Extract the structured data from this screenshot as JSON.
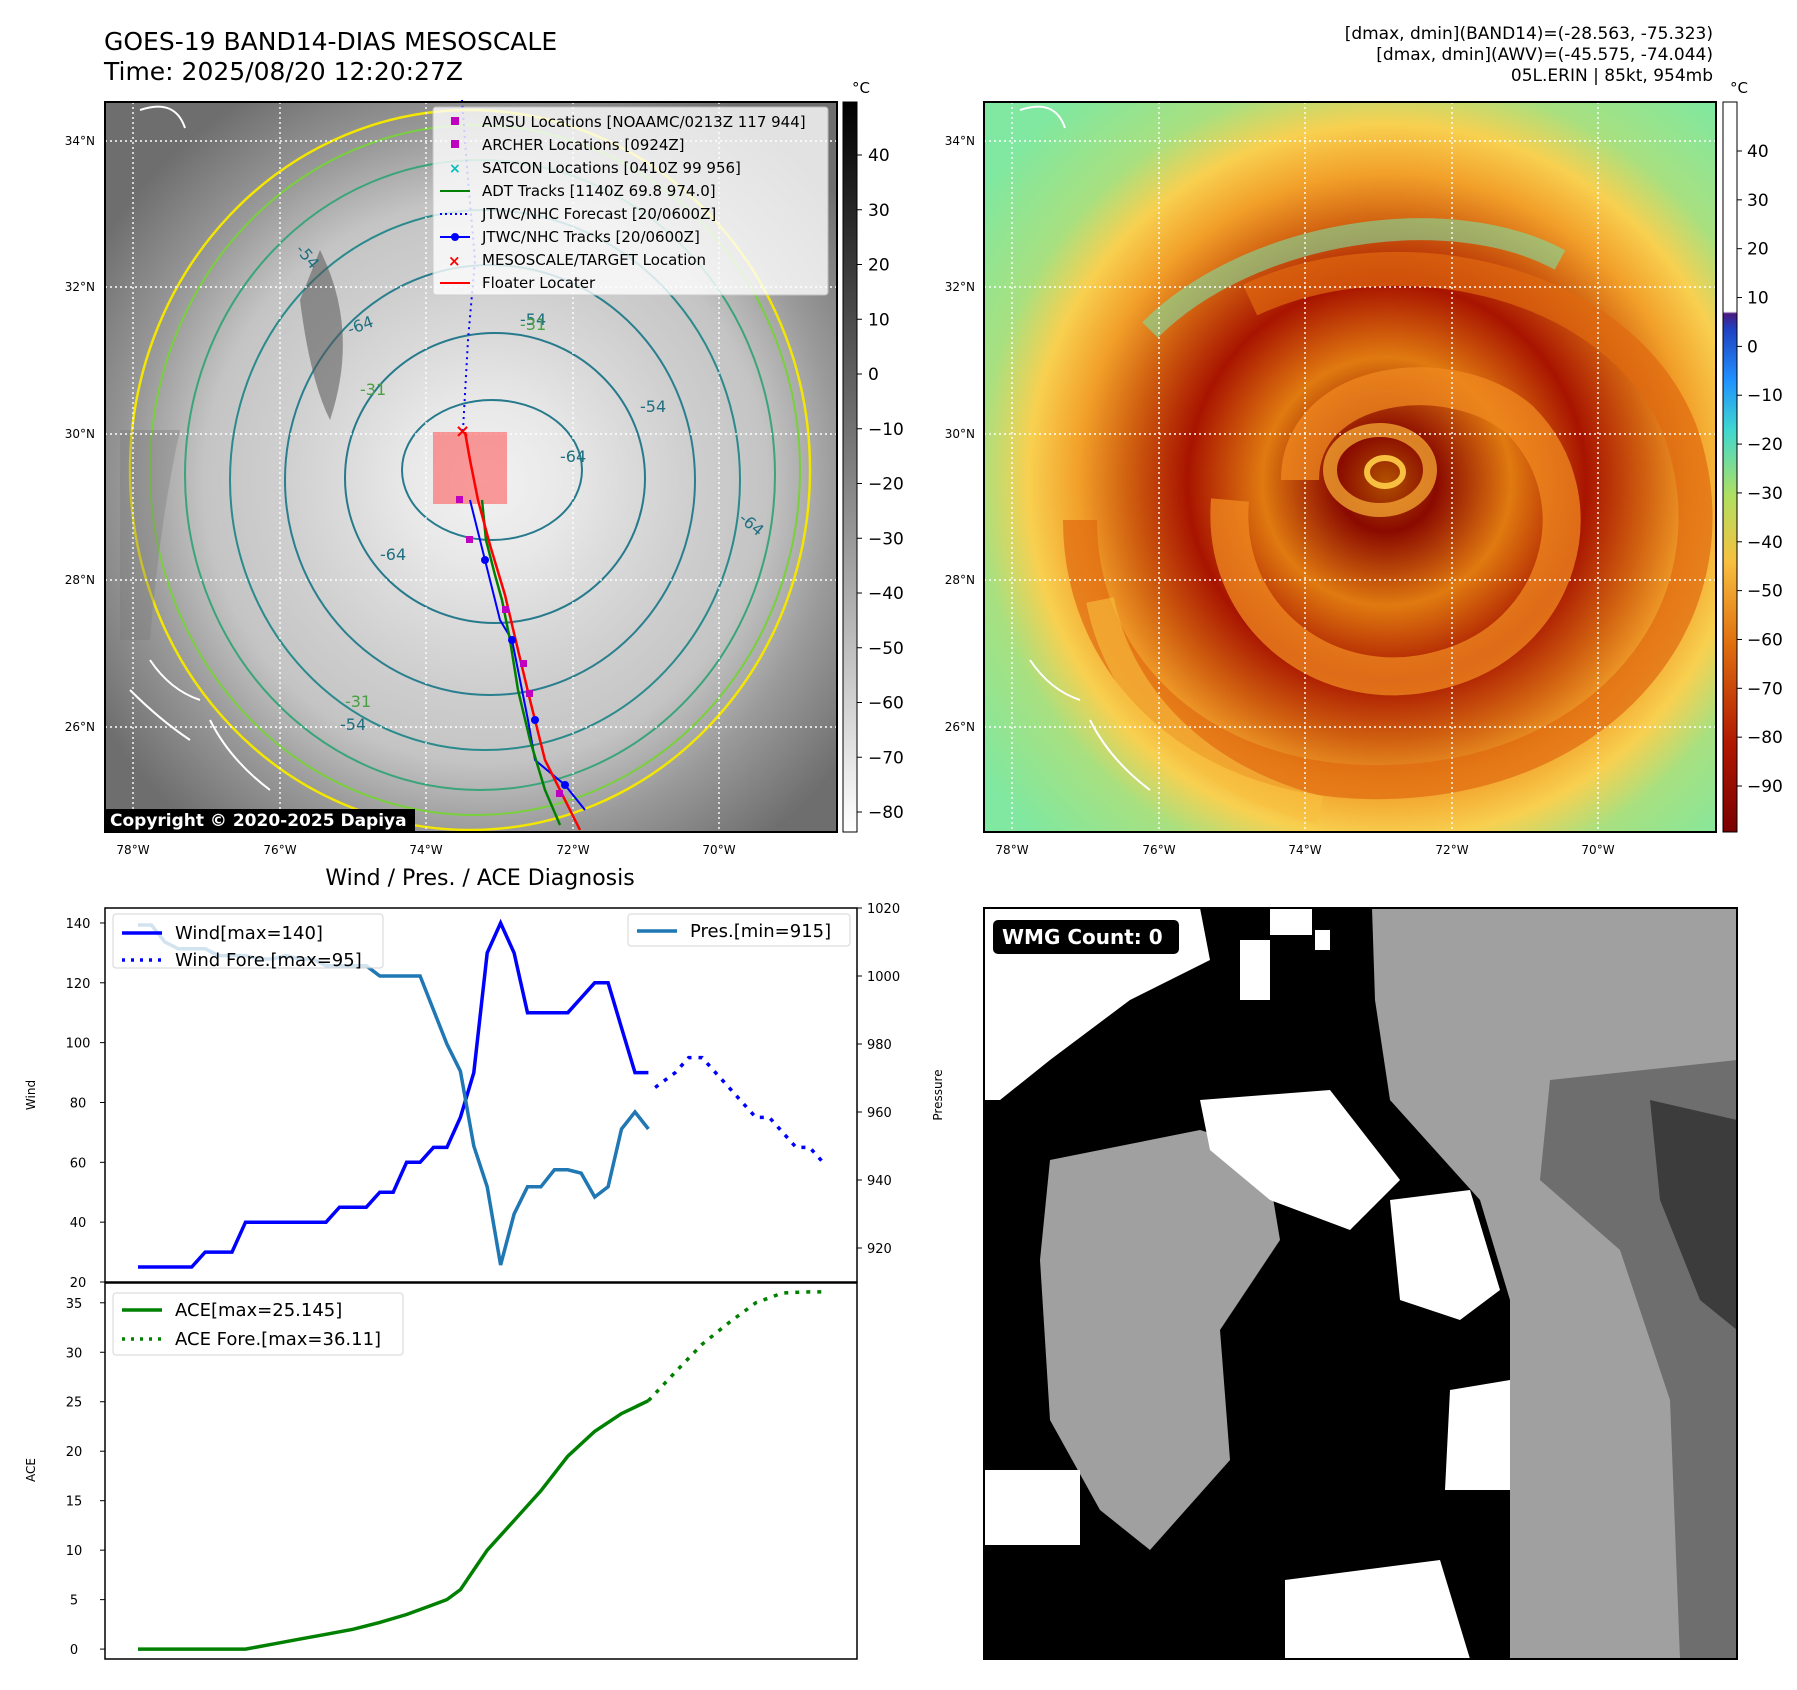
{
  "header": {
    "title_line1": "GOES-19 BAND14-DIAS MESOSCALE",
    "title_line2": "Time: 2025/08/20 12:20:27Z",
    "right_line1": "[dmax, dmin](BAND14)=(-28.563, -75.323)",
    "right_line2": "[dmax, dmin](AWV)=(-45.575, -74.044)",
    "right_line3": "05L.ERIN | 85kt, 954mb"
  },
  "map": {
    "lat_labels": [
      "34°N",
      "32°N",
      "30°N",
      "28°N",
      "26°N"
    ],
    "lon_labels": [
      "78°W",
      "76°W",
      "74°W",
      "72°W",
      "70°W"
    ],
    "copyright": "Copyright © 2020-2025 Dapiya",
    "contour_labels": [
      "-64",
      "-64",
      "-64",
      "-64",
      "-54",
      "-54",
      "-54",
      "-54",
      "-31",
      "-31",
      "-31"
    ],
    "legend": [
      {
        "label": "AMSU Locations [NOAAMC/0213Z 117 944]",
        "color": "#c000c0",
        "marker": "square"
      },
      {
        "label": "ARCHER Locations [0924Z]",
        "color": "#c000c0",
        "marker": "square"
      },
      {
        "label": "SATCON Locations [0410Z 99 956]",
        "color": "#00bfbf",
        "marker": "x"
      },
      {
        "label": "ADT Tracks [1140Z 69.8 974.0]",
        "color": "#008000",
        "marker": "line"
      },
      {
        "label": "JTWC/NHC Forecast [20/0600Z]",
        "color": "#0000ff",
        "marker": "dotted"
      },
      {
        "label": "JTWC/NHC Tracks [20/0600Z]",
        "color": "#0000ff",
        "marker": "line-dot"
      },
      {
        "label": "MESOSCALE/TARGET Location",
        "color": "#ff0000",
        "marker": "x"
      },
      {
        "label": "Floater Locater",
        "color": "#ff0000",
        "marker": "line"
      }
    ]
  },
  "colorbars": {
    "unit": "°C",
    "gray_ticks": [
      "40",
      "30",
      "20",
      "10",
      "0",
      "−10",
      "−20",
      "−30",
      "−40",
      "−50",
      "−60",
      "−70",
      "−80"
    ],
    "color_ticks": [
      "40",
      "30",
      "20",
      "10",
      "0",
      "−10",
      "−20",
      "−30",
      "−40",
      "−50",
      "−60",
      "−70",
      "−80",
      "−90"
    ]
  },
  "chart_data": [
    {
      "type": "line",
      "title": "Wind / Pres. / ACE Diagnosis",
      "ylabel": "Wind",
      "ylabel_right": "Pressure",
      "ylim": [
        20,
        145
      ],
      "ylim_right": [
        910,
        1020
      ],
      "y_ticks": [
        "140",
        "120",
        "100",
        "80",
        "60",
        "40",
        "20"
      ],
      "y_right_ticks": [
        "1020",
        "1000",
        "980",
        "960",
        "940",
        "920"
      ],
      "series": [
        {
          "name": "Wind[max=140]",
          "color": "#0000ff",
          "style": "solid",
          "axis": "left",
          "x": [
            0,
            1,
            2,
            3,
            4,
            5,
            6,
            7,
            8,
            9,
            10,
            11,
            12,
            13,
            14,
            15,
            16,
            17,
            18,
            19,
            20,
            21,
            22,
            23,
            24,
            25,
            26,
            27,
            28,
            29,
            30,
            31,
            32,
            33,
            34,
            35,
            36,
            37,
            38
          ],
          "values": [
            25,
            25,
            25,
            25,
            25,
            30,
            30,
            30,
            40,
            40,
            40,
            40,
            40,
            40,
            40,
            45,
            45,
            45,
            50,
            50,
            60,
            60,
            65,
            65,
            75,
            90,
            130,
            140,
            130,
            110,
            110,
            110,
            110,
            115,
            120,
            120,
            105,
            90,
            90
          ]
        },
        {
          "name": "Wind Fore.[max=95]",
          "color": "#0000ff",
          "style": "dotted",
          "axis": "left",
          "x": [
            38.5,
            40,
            41,
            42,
            43,
            44,
            45,
            46,
            47,
            48,
            49,
            50,
            51
          ],
          "values": [
            85,
            90,
            95,
            95,
            90,
            85,
            80,
            75,
            75,
            70,
            65,
            65,
            60
          ]
        },
        {
          "name": "Pres.[min=915]",
          "color": "#1f77b4",
          "style": "solid",
          "axis": "right",
          "x": [
            0,
            1,
            2,
            3,
            4,
            5,
            6,
            7,
            8,
            9,
            10,
            11,
            12,
            13,
            14,
            15,
            16,
            17,
            18,
            19,
            20,
            21,
            22,
            23,
            24,
            25,
            26,
            27,
            28,
            29,
            30,
            31,
            32,
            33,
            34,
            35,
            36,
            37,
            38
          ],
          "values": [
            1015,
            1015,
            1010,
            1008,
            1008,
            1008,
            1006,
            1006,
            1006,
            1005,
            1005,
            1006,
            1005,
            1005,
            1003,
            1003,
            1003,
            1003,
            1000,
            1000,
            1000,
            1000,
            990,
            980,
            972,
            950,
            938,
            915,
            930,
            938,
            938,
            943,
            943,
            942,
            935,
            938,
            955,
            960,
            955
          ]
        }
      ]
    },
    {
      "type": "line",
      "title": "",
      "ylabel": "ACE",
      "ylim": [
        -1,
        37
      ],
      "y_ticks": [
        "35",
        "30",
        "25",
        "20",
        "15",
        "10",
        "5",
        "0"
      ],
      "series": [
        {
          "name": "ACE[max=25.145]",
          "color": "#008000",
          "style": "solid",
          "x": [
            0,
            2,
            4,
            6,
            8,
            10,
            12,
            14,
            16,
            18,
            20,
            22,
            23,
            24,
            25,
            26,
            28,
            30,
            32,
            34,
            36,
            38
          ],
          "values": [
            0,
            0,
            0,
            0,
            0,
            0.5,
            1,
            1.5,
            2,
            2.7,
            3.5,
            4.5,
            5,
            6,
            8,
            10,
            13,
            16,
            19.5,
            22,
            23.8,
            25.1
          ]
        },
        {
          "name": "ACE Fore.[max=36.11]",
          "color": "#008000",
          "style": "dotted",
          "x": [
            38,
            40,
            42,
            44,
            46,
            48,
            50,
            51
          ],
          "values": [
            25.1,
            28,
            30.8,
            33,
            35,
            36,
            36.1,
            36.1
          ]
        }
      ]
    }
  ],
  "wmg": {
    "label": "WMG Count: 0"
  }
}
